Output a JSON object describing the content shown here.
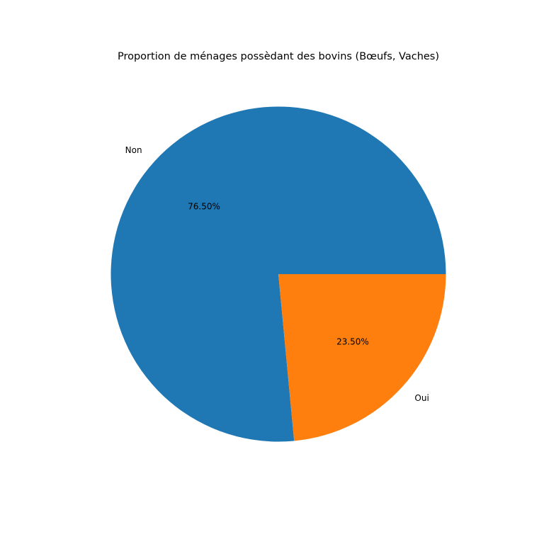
{
  "chart_data": {
    "type": "pie",
    "title": "Proportion de ménages possèdant des bovins (Bœufs, Vaches)",
    "start_angle_deg": 0,
    "direction": "counterclockwise",
    "slices": [
      {
        "label": "Non",
        "value": 76.5,
        "pct_label": "76.50%",
        "color": "#1f77b4"
      },
      {
        "label": "Oui",
        "value": 23.5,
        "pct_label": "23.50%",
        "color": "#ff7f0e"
      }
    ]
  }
}
